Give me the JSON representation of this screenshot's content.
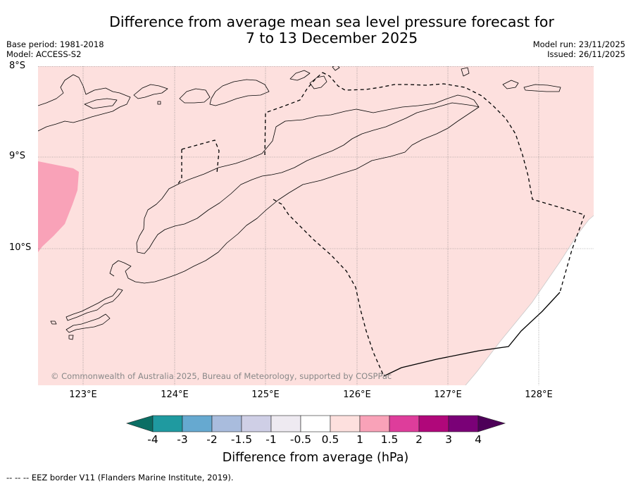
{
  "title": {
    "line1": "Difference from average mean sea level pressure forecast for",
    "line2": "7 to 13 December 2025"
  },
  "meta_left": {
    "base_period": "Base period: 1981-2018",
    "model": "Model: ACCESS-S2"
  },
  "meta_right": {
    "model_run": "Model run: 23/11/2025",
    "issued": "Issued: 26/11/2025"
  },
  "map": {
    "lat_labels": [
      "8°S",
      "9°S",
      "10°S"
    ],
    "lon_labels": [
      "123°E",
      "124°E",
      "125°E",
      "126°E",
      "127°E",
      "128°E"
    ],
    "copyright": "© Commonwealth of Australia 2025, Bureau of Meteorology, supported by COSPPac",
    "colors": {
      "background_fill": "#fde0de",
      "anomaly_patch": "#f9a2b8",
      "ocean_corner": "#ffffff"
    }
  },
  "colorbar": {
    "ticks": [
      "-4",
      "-3",
      "-2",
      "-1.5",
      "-1",
      "-0.5",
      "0.5",
      "1",
      "1.5",
      "2",
      "3",
      "4"
    ],
    "colors": [
      "#0b6e64",
      "#1f9aa0",
      "#66a9d0",
      "#a9bcdd",
      "#cfcfe6",
      "#eeeaf1",
      "#ffffff",
      "#fde0de",
      "#f9a2b8",
      "#de3d9b",
      "#b0077a",
      "#7a0177",
      "#4d0058"
    ],
    "label": "Difference from average (hPa)"
  },
  "footer": {
    "eez_note": "--  --  -- EEZ border V11 (Flanders Marine Institute, 2019)."
  }
}
